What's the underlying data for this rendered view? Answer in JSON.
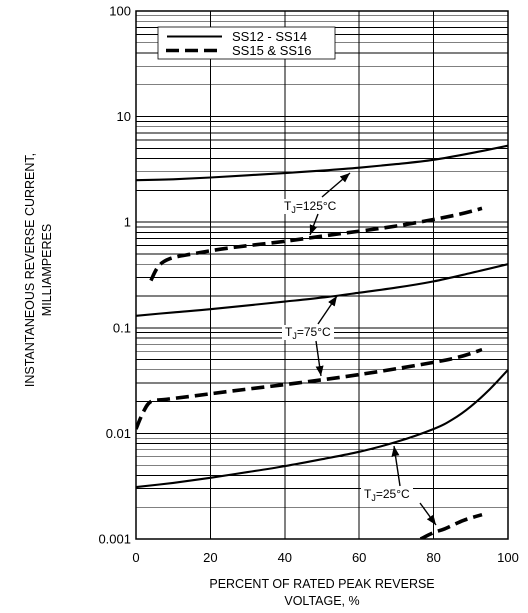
{
  "chart_data": {
    "type": "line",
    "y_scale": "log",
    "xlim": [
      0,
      100
    ],
    "ylim": [
      0.001,
      100
    ],
    "x_ticks": [
      0,
      20,
      40,
      60,
      80,
      100
    ],
    "y_ticks": [
      0.001,
      0.01,
      0.1,
      1,
      10,
      100
    ],
    "y_tick_labels": [
      "0.001",
      "0.01",
      "0.1",
      "1",
      "10",
      "100"
    ],
    "xlabel": [
      "PERCENT OF RATED PEAK REVERSE",
      "VOLTAGE, %"
    ],
    "ylabel": [
      "INSTANTANEOUS REVERSE CURRENT,",
      "MILLIAMPERES"
    ],
    "grid": true,
    "legend_position": "top-left",
    "legend": [
      {
        "label": "SS12 - SS14",
        "style": "solid"
      },
      {
        "label": "SS15 & SS16",
        "style": "dashed"
      }
    ],
    "annotations": [
      {
        "symbol": "T",
        "sub": "J",
        "suffix": "=125°C"
      },
      {
        "symbol": "T",
        "sub": "J",
        "suffix": "=75°C"
      },
      {
        "symbol": "T",
        "sub": "J",
        "suffix": "=25°C"
      }
    ],
    "series": [
      {
        "legend": 0,
        "annotation": 0,
        "x": [
          0,
          10,
          20,
          30,
          40,
          50,
          60,
          70,
          80,
          90,
          100
        ],
        "y": [
          2.5,
          2.55,
          2.65,
          2.78,
          2.92,
          3.08,
          3.28,
          3.55,
          3.9,
          4.5,
          5.3
        ]
      },
      {
        "legend": 1,
        "annotation": 0,
        "x": [
          4,
          6,
          9,
          15,
          25,
          40,
          55,
          70,
          85,
          93
        ],
        "y": [
          0.28,
          0.38,
          0.45,
          0.5,
          0.57,
          0.66,
          0.78,
          0.92,
          1.15,
          1.35
        ]
      },
      {
        "legend": 0,
        "annotation": 1,
        "x": [
          0,
          10,
          20,
          30,
          40,
          50,
          60,
          70,
          80,
          90,
          100
        ],
        "y": [
          0.13,
          0.14,
          0.15,
          0.163,
          0.177,
          0.193,
          0.215,
          0.24,
          0.275,
          0.33,
          0.4
        ]
      },
      {
        "legend": 1,
        "annotation": 1,
        "x": [
          0,
          2,
          4,
          8,
          15,
          25,
          40,
          55,
          70,
          85,
          93
        ],
        "y": [
          0.011,
          0.016,
          0.02,
          0.021,
          0.0225,
          0.025,
          0.029,
          0.034,
          0.041,
          0.051,
          0.062
        ]
      },
      {
        "legend": 0,
        "annotation": 2,
        "x": [
          0,
          10,
          20,
          30,
          40,
          50,
          60,
          70,
          80,
          85,
          90,
          95,
          100
        ],
        "y": [
          0.0031,
          0.0034,
          0.0038,
          0.0043,
          0.0049,
          0.0057,
          0.0067,
          0.0083,
          0.011,
          0.0135,
          0.018,
          0.026,
          0.04
        ]
      },
      {
        "legend": 1,
        "annotation": 2,
        "x": [
          76.5,
          80,
          83,
          88,
          93
        ],
        "y": [
          0.001,
          0.00115,
          0.00125,
          0.0015,
          0.0017
        ]
      }
    ]
  }
}
